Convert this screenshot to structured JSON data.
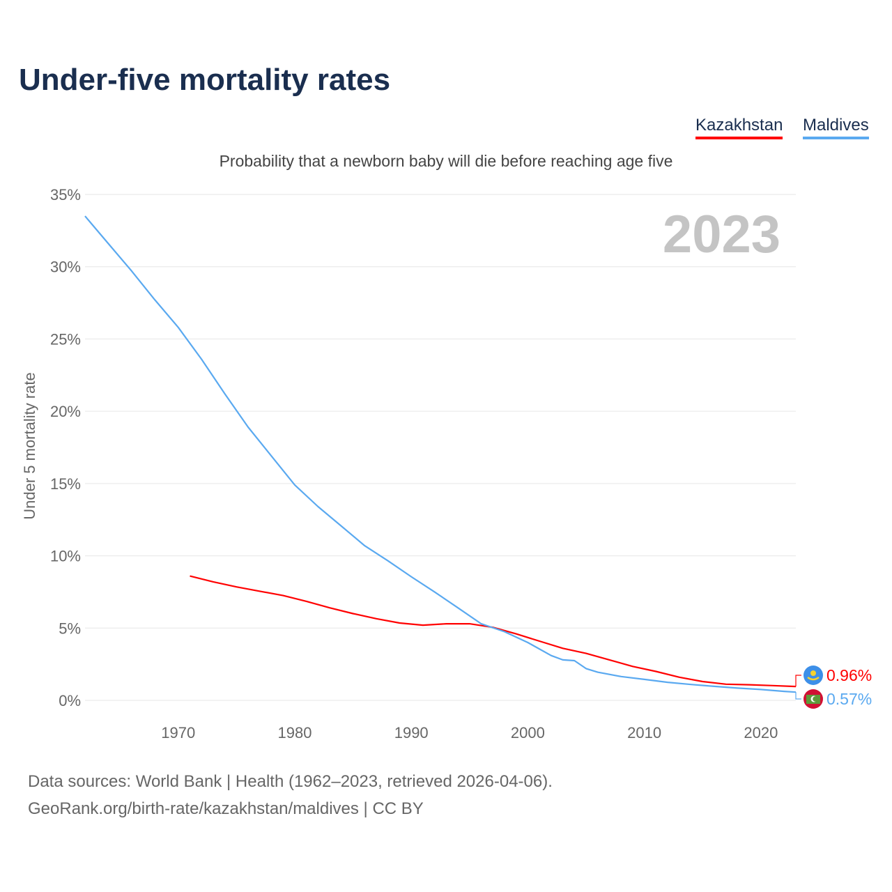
{
  "chart_data": {
    "type": "line",
    "title": "Under-five mortality rates",
    "subtitle": "Probability that a newborn baby will die before reaching age five",
    "ylabel": "Under 5 mortality rate",
    "xlabel": "",
    "ylim": [
      0,
      35
    ],
    "xlim": [
      1962,
      2023
    ],
    "yticks": [
      0,
      5,
      10,
      15,
      20,
      25,
      30,
      35
    ],
    "ytick_labels": [
      "0%",
      "5%",
      "10%",
      "15%",
      "20%",
      "25%",
      "30%",
      "35%"
    ],
    "xticks": [
      1970,
      1980,
      1990,
      2000,
      2010,
      2020
    ],
    "xtick_labels": [
      "1970",
      "1980",
      "1990",
      "2000",
      "2010",
      "2020"
    ],
    "grid": true,
    "legend_placement": "top-right",
    "year_label": "2023",
    "series": [
      {
        "name": "Kazakhstan",
        "color": "#ff0000",
        "end_label": "0.96%",
        "x": [
          1971,
          1973,
          1975,
          1977,
          1979,
          1981,
          1983,
          1985,
          1987,
          1989,
          1991,
          1993,
          1995,
          1997,
          1999,
          2001,
          2003,
          2005,
          2007,
          2009,
          2011,
          2013,
          2015,
          2017,
          2019,
          2021,
          2023
        ],
        "values": [
          8.6,
          8.2,
          7.85,
          7.55,
          7.25,
          6.85,
          6.4,
          6.0,
          5.65,
          5.35,
          5.2,
          5.3,
          5.3,
          5.05,
          4.6,
          4.1,
          3.6,
          3.25,
          2.8,
          2.35,
          2.0,
          1.6,
          1.3,
          1.12,
          1.08,
          1.02,
          0.96
        ]
      },
      {
        "name": "Maldives",
        "color": "#5aa9f0",
        "end_label": "0.57%",
        "x": [
          1962,
          1964,
          1966,
          1968,
          1970,
          1972,
          1974,
          1976,
          1978,
          1980,
          1982,
          1984,
          1986,
          1988,
          1990,
          1992,
          1994,
          1996,
          1998,
          2000,
          2002,
          2003,
          2004,
          2005,
          2006,
          2008,
          2010,
          2012,
          2014,
          2016,
          2018,
          2020,
          2022,
          2023
        ],
        "values": [
          33.5,
          31.6,
          29.7,
          27.7,
          25.8,
          23.6,
          21.2,
          18.9,
          16.9,
          14.9,
          13.4,
          12.05,
          10.7,
          9.65,
          8.55,
          7.5,
          6.4,
          5.3,
          4.75,
          4.0,
          3.1,
          2.8,
          2.75,
          2.2,
          1.95,
          1.65,
          1.45,
          1.25,
          1.1,
          0.97,
          0.85,
          0.75,
          0.62,
          0.57
        ]
      }
    ]
  },
  "footer": {
    "line1": "Data sources: World Bank | Health (1962–2023, retrieved 2026-04-06).",
    "line2": "GeoRank.org/birth-rate/kazakhstan/maldives | CC BY"
  }
}
